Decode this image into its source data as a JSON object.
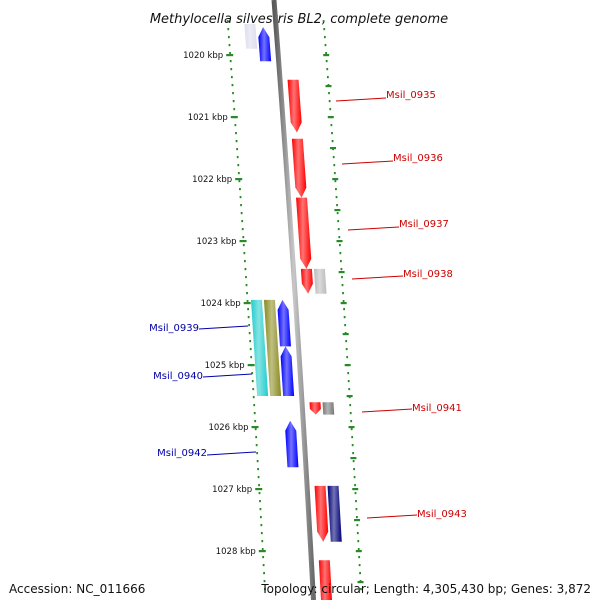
{
  "title": "Methylocella silvestris BL2, complete genome",
  "footer": {
    "accession": "Accession: NC_011666",
    "summary": "Topology: circular; Length: 4,305,430 bp; Genes: 3,872"
  },
  "colors": {
    "tick": "#2a8a2a",
    "backbone": "#888888",
    "forward_label": "#cc0000",
    "reverse_label": "#0000aa"
  },
  "ticks": [
    {
      "kbp": 1020,
      "label": "1020 kbp"
    },
    {
      "kbp": 1021,
      "label": "1021 kbp"
    },
    {
      "kbp": 1022,
      "label": "1022 kbp"
    },
    {
      "kbp": 1023,
      "label": "1023 kbp"
    },
    {
      "kbp": 1024,
      "label": "1024 kbp"
    },
    {
      "kbp": 1025,
      "label": "1025 kbp"
    },
    {
      "kbp": 1026,
      "label": "1026 kbp"
    },
    {
      "kbp": 1027,
      "label": "1027 kbp"
    },
    {
      "kbp": 1028,
      "label": "1028 kbp"
    }
  ],
  "labels": [
    {
      "text": "Msil_0935",
      "strand": "forward"
    },
    {
      "text": "Msil_0936",
      "strand": "forward"
    },
    {
      "text": "Msil_0937",
      "strand": "forward"
    },
    {
      "text": "Msil_0938",
      "strand": "forward"
    },
    {
      "text": "Msil_0939",
      "strand": "reverse"
    },
    {
      "text": "Msil_0940",
      "strand": "reverse"
    },
    {
      "text": "Msil_0941",
      "strand": "forward"
    },
    {
      "text": "Msil_0942",
      "strand": "reverse"
    },
    {
      "text": "Msil_0943",
      "strand": "forward"
    }
  ],
  "features": [
    {
      "kind": "gene",
      "strand": "reverse",
      "track": 1,
      "start": 1019.55,
      "end": 1020.1,
      "color": "#0000ff",
      "arrow": true
    },
    {
      "kind": "gene",
      "strand": "reverse",
      "track": 2,
      "start": 1019.5,
      "end": 1019.9,
      "color": "#ddddee",
      "arrow": false
    },
    {
      "kind": "gene",
      "strand": "forward",
      "track": 1,
      "start": 1020.4,
      "end": 1021.25,
      "color": "#ff0000",
      "arrow": true
    },
    {
      "kind": "gene",
      "strand": "forward",
      "track": 1,
      "start": 1021.35,
      "end": 1022.3,
      "color": "#ff0000",
      "arrow": true
    },
    {
      "kind": "gene",
      "strand": "forward",
      "track": 1,
      "start": 1022.3,
      "end": 1023.45,
      "color": "#ff0000",
      "arrow": true
    },
    {
      "kind": "gene",
      "strand": "forward",
      "track": 1,
      "start": 1023.45,
      "end": 1023.85,
      "color": "#ff0000",
      "arrow": true
    },
    {
      "kind": "other",
      "strand": "forward",
      "track": 2,
      "start": 1023.45,
      "end": 1023.85,
      "color": "#bbbbbb",
      "arrow": false
    },
    {
      "kind": "gene",
      "strand": "reverse",
      "track": 1,
      "start": 1023.95,
      "end": 1024.7,
      "color": "#0000ff",
      "arrow": true
    },
    {
      "kind": "gene",
      "strand": "reverse",
      "track": 1,
      "start": 1024.7,
      "end": 1025.5,
      "color": "#0000ff",
      "arrow": true
    },
    {
      "kind": "other",
      "strand": "reverse",
      "track": 2,
      "start": 1023.95,
      "end": 1025.5,
      "color": "#8a8a1e",
      "arrow": false
    },
    {
      "kind": "other",
      "strand": "reverse",
      "track": 3,
      "start": 1023.95,
      "end": 1025.5,
      "color": "#22cccc",
      "arrow": false
    },
    {
      "kind": "gene",
      "strand": "forward",
      "track": 1,
      "start": 1025.6,
      "end": 1025.8,
      "color": "#ff0000",
      "arrow": true
    },
    {
      "kind": "other",
      "strand": "forward",
      "track": 2,
      "start": 1025.6,
      "end": 1025.8,
      "color": "#777777",
      "arrow": false
    },
    {
      "kind": "gene",
      "strand": "reverse",
      "track": 1,
      "start": 1025.9,
      "end": 1026.65,
      "color": "#0000ff",
      "arrow": true
    },
    {
      "kind": "gene",
      "strand": "forward",
      "track": 1,
      "start": 1026.95,
      "end": 1027.85,
      "color": "#ff0000",
      "arrow": true
    },
    {
      "kind": "other",
      "strand": "forward",
      "track": 2,
      "start": 1026.95,
      "end": 1027.85,
      "color": "#000077",
      "arrow": false
    },
    {
      "kind": "gene",
      "strand": "forward",
      "track": 1,
      "start": 1028.15,
      "end": 1028.8,
      "color": "#ff0000",
      "arrow": false
    }
  ]
}
